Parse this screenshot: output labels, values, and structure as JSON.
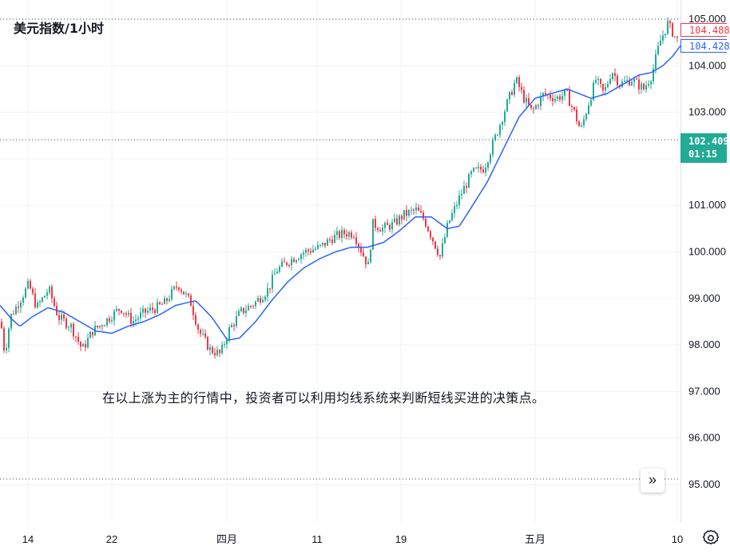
{
  "header": {
    "title": "美元指数/1小时"
  },
  "caption": "在以上涨为主的行情中，投资者可以利用均线系统来判断短线买进的决策点。",
  "price_tags": {
    "last_price": "104.488",
    "ma_value": "104.428",
    "crosshair_price": "102.409",
    "crosshair_time": "01:15"
  },
  "buttons": {
    "scroll_right": "»"
  },
  "colors": {
    "up": "#22ab94",
    "down": "#f23645",
    "ma": "#2962ff",
    "grid": "#f0f3fa",
    "text": "#131722",
    "accent": "#22ab94"
  },
  "chart_data": {
    "type": "candlestick",
    "title": "美元指数/1小时",
    "ylim": [
      94.7,
      105.45
    ],
    "y_ticks": [
      95,
      96,
      97,
      98,
      99,
      100,
      101,
      102,
      103,
      104,
      105
    ],
    "y_tick_labels": [
      "95.000",
      "96.000",
      "97.000",
      "98.000",
      "99.000",
      "100.000",
      "101.000",
      "102.000",
      "103.000",
      "104.000",
      "105.000"
    ],
    "x_ticks": [
      "14",
      "22",
      "四月",
      "11",
      "19",
      "五月",
      "10"
    ],
    "reference_lines": [
      105.0,
      102.409,
      95.12
    ],
    "price_path": [
      {
        "t": 0,
        "v": 98.5
      },
      {
        "t": 5,
        "v": 97.8
      },
      {
        "t": 12,
        "v": 98.6
      },
      {
        "t": 22,
        "v": 98.9
      },
      {
        "t": 35,
        "v": 99.3
      },
      {
        "t": 45,
        "v": 98.8
      },
      {
        "t": 60,
        "v": 99.2
      },
      {
        "t": 72,
        "v": 98.6
      },
      {
        "t": 88,
        "v": 98.4
      },
      {
        "t": 102,
        "v": 97.9
      },
      {
        "t": 115,
        "v": 98.3
      },
      {
        "t": 130,
        "v": 98.5
      },
      {
        "t": 150,
        "v": 98.8
      },
      {
        "t": 165,
        "v": 98.5
      },
      {
        "t": 180,
        "v": 98.7
      },
      {
        "t": 195,
        "v": 98.8
      },
      {
        "t": 205,
        "v": 98.9
      },
      {
        "t": 222,
        "v": 99.3
      },
      {
        "t": 238,
        "v": 98.9
      },
      {
        "t": 248,
        "v": 98.3
      },
      {
        "t": 262,
        "v": 97.9
      },
      {
        "t": 275,
        "v": 97.8
      },
      {
        "t": 285,
        "v": 98.3
      },
      {
        "t": 300,
        "v": 98.7
      },
      {
        "t": 318,
        "v": 98.9
      },
      {
        "t": 335,
        "v": 99.2
      },
      {
        "t": 345,
        "v": 99.6
      },
      {
        "t": 360,
        "v": 99.8
      },
      {
        "t": 380,
        "v": 100.0
      },
      {
        "t": 400,
        "v": 100.1
      },
      {
        "t": 415,
        "v": 100.3
      },
      {
        "t": 430,
        "v": 100.4
      },
      {
        "t": 442,
        "v": 100.4
      },
      {
        "t": 452,
        "v": 100.0
      },
      {
        "t": 460,
        "v": 99.7
      },
      {
        "t": 466,
        "v": 100.6
      },
      {
        "t": 478,
        "v": 100.5
      },
      {
        "t": 492,
        "v": 100.6
      },
      {
        "t": 505,
        "v": 100.8
      },
      {
        "t": 520,
        "v": 100.9
      },
      {
        "t": 530,
        "v": 100.7
      },
      {
        "t": 540,
        "v": 100.3
      },
      {
        "t": 550,
        "v": 99.9
      },
      {
        "t": 560,
        "v": 100.6
      },
      {
        "t": 575,
        "v": 101.2
      },
      {
        "t": 590,
        "v": 101.7
      },
      {
        "t": 605,
        "v": 101.8
      },
      {
        "t": 620,
        "v": 102.5
      },
      {
        "t": 632,
        "v": 103.1
      },
      {
        "t": 645,
        "v": 103.7
      },
      {
        "t": 655,
        "v": 103.3
      },
      {
        "t": 665,
        "v": 103.0
      },
      {
        "t": 680,
        "v": 103.4
      },
      {
        "t": 695,
        "v": 103.3
      },
      {
        "t": 708,
        "v": 103.4
      },
      {
        "t": 718,
        "v": 103.0
      },
      {
        "t": 726,
        "v": 102.6
      },
      {
        "t": 736,
        "v": 103.2
      },
      {
        "t": 745,
        "v": 103.7
      },
      {
        "t": 755,
        "v": 103.4
      },
      {
        "t": 765,
        "v": 103.9
      },
      {
        "t": 775,
        "v": 103.6
      },
      {
        "t": 790,
        "v": 103.7
      },
      {
        "t": 805,
        "v": 103.5
      },
      {
        "t": 815,
        "v": 103.8
      },
      {
        "t": 825,
        "v": 104.5
      },
      {
        "t": 835,
        "v": 104.9
      },
      {
        "t": 845,
        "v": 104.6
      },
      {
        "t": 852,
        "v": 104.49
      }
    ],
    "moving_average": [
      {
        "t": 0,
        "v": 98.85
      },
      {
        "t": 15,
        "v": 98.55
      },
      {
        "t": 25,
        "v": 98.4
      },
      {
        "t": 40,
        "v": 98.6
      },
      {
        "t": 60,
        "v": 98.8
      },
      {
        "t": 80,
        "v": 98.7
      },
      {
        "t": 100,
        "v": 98.5
      },
      {
        "t": 120,
        "v": 98.3
      },
      {
        "t": 140,
        "v": 98.25
      },
      {
        "t": 160,
        "v": 98.4
      },
      {
        "t": 180,
        "v": 98.5
      },
      {
        "t": 200,
        "v": 98.65
      },
      {
        "t": 220,
        "v": 98.85
      },
      {
        "t": 245,
        "v": 98.95
      },
      {
        "t": 265,
        "v": 98.6
      },
      {
        "t": 285,
        "v": 98.1
      },
      {
        "t": 300,
        "v": 98.15
      },
      {
        "t": 320,
        "v": 98.5
      },
      {
        "t": 340,
        "v": 98.95
      },
      {
        "t": 360,
        "v": 99.35
      },
      {
        "t": 380,
        "v": 99.65
      },
      {
        "t": 400,
        "v": 99.85
      },
      {
        "t": 420,
        "v": 100.0
      },
      {
        "t": 440,
        "v": 100.1
      },
      {
        "t": 460,
        "v": 100.1
      },
      {
        "t": 480,
        "v": 100.2
      },
      {
        "t": 500,
        "v": 100.45
      },
      {
        "t": 520,
        "v": 100.75
      },
      {
        "t": 540,
        "v": 100.75
      },
      {
        "t": 560,
        "v": 100.5
      },
      {
        "t": 575,
        "v": 100.55
      },
      {
        "t": 590,
        "v": 100.95
      },
      {
        "t": 610,
        "v": 101.5
      },
      {
        "t": 630,
        "v": 102.2
      },
      {
        "t": 650,
        "v": 102.9
      },
      {
        "t": 670,
        "v": 103.3
      },
      {
        "t": 690,
        "v": 103.4
      },
      {
        "t": 710,
        "v": 103.5
      },
      {
        "t": 725,
        "v": 103.4
      },
      {
        "t": 740,
        "v": 103.3
      },
      {
        "t": 760,
        "v": 103.4
      },
      {
        "t": 780,
        "v": 103.6
      },
      {
        "t": 800,
        "v": 103.8
      },
      {
        "t": 815,
        "v": 103.85
      },
      {
        "t": 830,
        "v": 104.0
      },
      {
        "t": 842,
        "v": 104.2
      },
      {
        "t": 852,
        "v": 104.43
      }
    ]
  }
}
